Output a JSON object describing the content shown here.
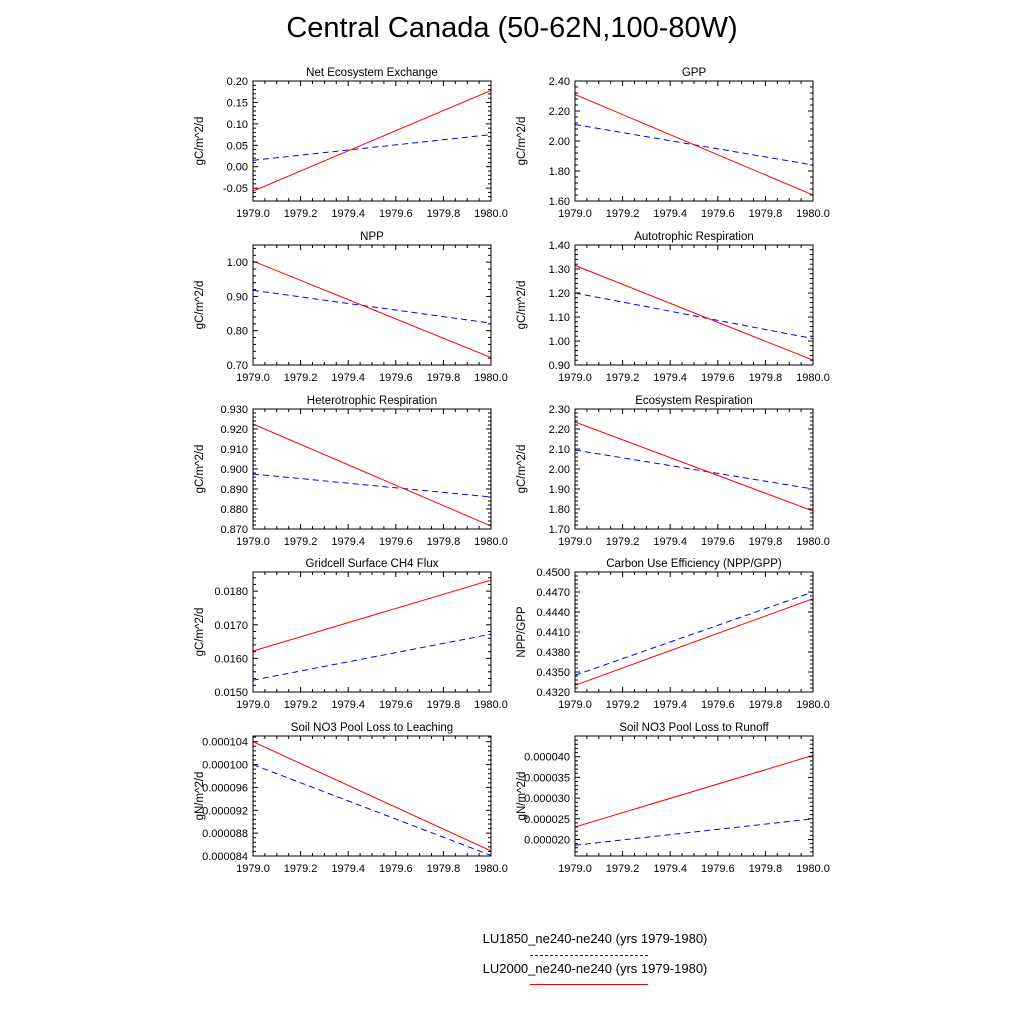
{
  "figure": {
    "title": "Central Canada (50-62N,100-80W)"
  },
  "colors": {
    "dashed_series": "#0000ff",
    "solid_series": "#ff0000",
    "axis": "#000000"
  },
  "legend": {
    "entries": [
      {
        "label": "LU1850_ne240-ne240 (yrs 1979-1980)",
        "style": "dashed",
        "color": "#0000ff"
      },
      {
        "label": "LU2000_ne240-ne240 (yrs 1979-1980)",
        "style": "solid",
        "color": "#ff0000"
      }
    ]
  },
  "chart_data": [
    {
      "type": "line",
      "title": "Net Ecosystem Exchange",
      "ylabel": "gC/m^2/d",
      "xlim": [
        1979.0,
        1980.0
      ],
      "ylim": [
        -0.08,
        0.2
      ],
      "xticks": [
        "1979.0",
        "1979.2",
        "1979.4",
        "1979.6",
        "1979.8",
        "1980.0"
      ],
      "yticks": [
        {
          "v": 0.2,
          "label": "0.20"
        },
        {
          "v": 0.15,
          "label": "0.15"
        },
        {
          "v": 0.1,
          "label": "0.10"
        },
        {
          "v": 0.05,
          "label": "0.05"
        },
        {
          "v": 0.0,
          "label": "0.00"
        },
        {
          "v": -0.05,
          "label": "-0.05"
        }
      ],
      "series": [
        {
          "name": "LU1850_ne240-ne240 (yrs 1979-1980)",
          "x": [
            1979.0,
            1980.0
          ],
          "y": [
            0.015,
            0.075
          ]
        },
        {
          "name": "LU2000_ne240-ne240 (yrs 1979-1980)",
          "x": [
            1979.0,
            1980.0
          ],
          "y": [
            -0.057,
            0.178
          ]
        }
      ]
    },
    {
      "type": "line",
      "title": "GPP",
      "ylabel": "gC/m^2/d",
      "xlim": [
        1979.0,
        1980.0
      ],
      "ylim": [
        1.6,
        2.4
      ],
      "xticks": [
        "1979.0",
        "1979.2",
        "1979.4",
        "1979.6",
        "1979.8",
        "1980.0"
      ],
      "yticks": [
        {
          "v": 2.4,
          "label": "2.40"
        },
        {
          "v": 2.2,
          "label": "2.20"
        },
        {
          "v": 2.0,
          "label": "2.00"
        },
        {
          "v": 1.8,
          "label": "1.80"
        },
        {
          "v": 1.6,
          "label": "1.60"
        }
      ],
      "series": [
        {
          "name": "LU1850_ne240-ne240 (yrs 1979-1980)",
          "x": [
            1979.0,
            1980.0
          ],
          "y": [
            2.11,
            1.84
          ]
        },
        {
          "name": "LU2000_ne240-ne240 (yrs 1979-1980)",
          "x": [
            1979.0,
            1980.0
          ],
          "y": [
            2.31,
            1.64
          ]
        }
      ]
    },
    {
      "type": "line",
      "title": "NPP",
      "ylabel": "gC/m^2/d",
      "xlim": [
        1979.0,
        1980.0
      ],
      "ylim": [
        0.7,
        1.05
      ],
      "xticks": [
        "1979.0",
        "1979.2",
        "1979.4",
        "1979.6",
        "1979.8",
        "1980.0"
      ],
      "yticks": [
        {
          "v": 1.0,
          "label": "1.00"
        },
        {
          "v": 0.9,
          "label": "0.90"
        },
        {
          "v": 0.8,
          "label": "0.80"
        },
        {
          "v": 0.7,
          "label": "0.70"
        }
      ],
      "series": [
        {
          "name": "LU1850_ne240-ne240 (yrs 1979-1980)",
          "x": [
            1979.0,
            1980.0
          ],
          "y": [
            0.918,
            0.822
          ]
        },
        {
          "name": "LU2000_ne240-ne240 (yrs 1979-1980)",
          "x": [
            1979.0,
            1980.0
          ],
          "y": [
            1.003,
            0.722
          ]
        }
      ]
    },
    {
      "type": "line",
      "title": "Autotrophic Respiration",
      "ylabel": "gC/m^2/d",
      "xlim": [
        1979.0,
        1980.0
      ],
      "ylim": [
        0.9,
        1.4
      ],
      "xticks": [
        "1979.0",
        "1979.2",
        "1979.4",
        "1979.6",
        "1979.8",
        "1980.0"
      ],
      "yticks": [
        {
          "v": 1.4,
          "label": "1.40"
        },
        {
          "v": 1.3,
          "label": "1.30"
        },
        {
          "v": 1.2,
          "label": "1.20"
        },
        {
          "v": 1.1,
          "label": "1.10"
        },
        {
          "v": 1.0,
          "label": "1.00"
        },
        {
          "v": 0.9,
          "label": "0.90"
        }
      ],
      "series": [
        {
          "name": "LU1850_ne240-ne240 (yrs 1979-1980)",
          "x": [
            1979.0,
            1980.0
          ],
          "y": [
            1.2,
            1.01
          ]
        },
        {
          "name": "LU2000_ne240-ne240 (yrs 1979-1980)",
          "x": [
            1979.0,
            1980.0
          ],
          "y": [
            1.315,
            0.92
          ]
        }
      ]
    },
    {
      "type": "line",
      "title": "Heterotrophic Respiration",
      "ylabel": "gC/m^2/d",
      "xlim": [
        1979.0,
        1980.0
      ],
      "ylim": [
        0.87,
        0.93
      ],
      "xticks": [
        "1979.0",
        "1979.2",
        "1979.4",
        "1979.6",
        "1979.8",
        "1980.0"
      ],
      "yticks": [
        {
          "v": 0.93,
          "label": "0.930"
        },
        {
          "v": 0.92,
          "label": "0.920"
        },
        {
          "v": 0.91,
          "label": "0.910"
        },
        {
          "v": 0.9,
          "label": "0.900"
        },
        {
          "v": 0.89,
          "label": "0.890"
        },
        {
          "v": 0.88,
          "label": "0.880"
        },
        {
          "v": 0.87,
          "label": "0.870"
        }
      ],
      "series": [
        {
          "name": "LU1850_ne240-ne240 (yrs 1979-1980)",
          "x": [
            1979.0,
            1980.0
          ],
          "y": [
            0.8975,
            0.886
          ]
        },
        {
          "name": "LU2000_ne240-ne240 (yrs 1979-1980)",
          "x": [
            1979.0,
            1980.0
          ],
          "y": [
            0.9225,
            0.8715
          ]
        }
      ]
    },
    {
      "type": "line",
      "title": "Ecosystem Respiration",
      "ylabel": "gC/m^2/d",
      "xlim": [
        1979.0,
        1980.0
      ],
      "ylim": [
        1.7,
        2.3
      ],
      "xticks": [
        "1979.0",
        "1979.2",
        "1979.4",
        "1979.6",
        "1979.8",
        "1980.0"
      ],
      "yticks": [
        {
          "v": 2.3,
          "label": "2.30"
        },
        {
          "v": 2.2,
          "label": "2.20"
        },
        {
          "v": 2.1,
          "label": "2.10"
        },
        {
          "v": 2.0,
          "label": "2.00"
        },
        {
          "v": 1.9,
          "label": "1.90"
        },
        {
          "v": 1.8,
          "label": "1.80"
        },
        {
          "v": 1.7,
          "label": "1.70"
        }
      ],
      "series": [
        {
          "name": "LU1850_ne240-ne240 (yrs 1979-1980)",
          "x": [
            1979.0,
            1980.0
          ],
          "y": [
            2.095,
            1.9
          ]
        },
        {
          "name": "LU2000_ne240-ne240 (yrs 1979-1980)",
          "x": [
            1979.0,
            1980.0
          ],
          "y": [
            2.235,
            1.79
          ]
        }
      ]
    },
    {
      "type": "line",
      "title": "Gridcell Surface CH4 Flux",
      "ylabel": "gC/m^2/d",
      "xlim": [
        1979.0,
        1980.0
      ],
      "ylim": [
        0.015,
        0.01857
      ],
      "xticks": [
        "1979.0",
        "1979.2",
        "1979.4",
        "1979.6",
        "1979.8",
        "1980.0"
      ],
      "yticks": [
        {
          "v": 0.018,
          "label": "0.0180"
        },
        {
          "v": 0.017,
          "label": "0.0170"
        },
        {
          "v": 0.016,
          "label": "0.0160"
        },
        {
          "v": 0.015,
          "label": "0.0150"
        }
      ],
      "series": [
        {
          "name": "LU1850_ne240-ne240 (yrs 1979-1980)",
          "x": [
            1979.0,
            1980.0
          ],
          "y": [
            0.01535,
            0.01672
          ]
        },
        {
          "name": "LU2000_ne240-ne240 (yrs 1979-1980)",
          "x": [
            1979.0,
            1980.0
          ],
          "y": [
            0.01622,
            0.01833
          ]
        }
      ]
    },
    {
      "type": "line",
      "title": "Carbon Use Efficiency (NPP/GPP)",
      "ylabel": "NPP/GPP",
      "xlim": [
        1979.0,
        1980.0
      ],
      "ylim": [
        0.432,
        0.45
      ],
      "xticks": [
        "1979.0",
        "1979.2",
        "1979.4",
        "1979.6",
        "1979.8",
        "1980.0"
      ],
      "yticks": [
        {
          "v": 0.45,
          "label": "0.4500"
        },
        {
          "v": 0.447,
          "label": "0.4470"
        },
        {
          "v": 0.444,
          "label": "0.4440"
        },
        {
          "v": 0.441,
          "label": "0.4410"
        },
        {
          "v": 0.438,
          "label": "0.4380"
        },
        {
          "v": 0.435,
          "label": "0.4350"
        },
        {
          "v": 0.432,
          "label": "0.4320"
        }
      ],
      "series": [
        {
          "name": "LU1850_ne240-ne240 (yrs 1979-1980)",
          "x": [
            1979.0,
            1980.0
          ],
          "y": [
            0.4345,
            0.447
          ]
        },
        {
          "name": "LU2000_ne240-ne240 (yrs 1979-1980)",
          "x": [
            1979.0,
            1980.0
          ],
          "y": [
            0.433,
            0.446
          ]
        }
      ]
    },
    {
      "type": "line",
      "title": "Soil NO3 Pool Loss to Leaching",
      "ylabel": "gN/m^2/d",
      "xlim": [
        1979.0,
        1980.0
      ],
      "ylim": [
        8.4e-05,
        0.000105
      ],
      "xticks": [
        "1979.0",
        "1979.2",
        "1979.4",
        "1979.6",
        "1979.8",
        "1980.0"
      ],
      "yticks": [
        {
          "v": 0.000104,
          "label": "0.000104"
        },
        {
          "v": 0.0001,
          "label": "0.000100"
        },
        {
          "v": 9.6e-05,
          "label": "0.000096"
        },
        {
          "v": 9.2e-05,
          "label": "0.000092"
        },
        {
          "v": 8.8e-05,
          "label": "0.000088"
        },
        {
          "v": 8.4e-05,
          "label": "0.000084"
        }
      ],
      "series": [
        {
          "name": "LU1850_ne240-ne240 (yrs 1979-1980)",
          "x": [
            1979.0,
            1980.0
          ],
          "y": [
            0.0001,
            8.41e-05
          ]
        },
        {
          "name": "LU2000_ne240-ne240 (yrs 1979-1980)",
          "x": [
            1979.0,
            1980.0
          ],
          "y": [
            0.000104,
            8.49e-05
          ]
        }
      ]
    },
    {
      "type": "line",
      "title": "Soil NO3 Pool Loss to Runoff",
      "ylabel": "gN/m^2/d",
      "xlim": [
        1979.0,
        1980.0
      ],
      "ylim": [
        1.6e-05,
        4.5e-05
      ],
      "xticks": [
        "1979.0",
        "1979.2",
        "1979.4",
        "1979.6",
        "1979.8",
        "1980.0"
      ],
      "yticks": [
        {
          "v": 4e-05,
          "label": "0.000040"
        },
        {
          "v": 3.5e-05,
          "label": "0.000035"
        },
        {
          "v": 3e-05,
          "label": "0.000030"
        },
        {
          "v": 2.5e-05,
          "label": "0.000025"
        },
        {
          "v": 2e-05,
          "label": "0.000020"
        }
      ],
      "series": [
        {
          "name": "LU1850_ne240-ne240 (yrs 1979-1980)",
          "x": [
            1979.0,
            1980.0
          ],
          "y": [
            1.86e-05,
            2.5e-05
          ]
        },
        {
          "name": "LU2000_ne240-ne240 (yrs 1979-1980)",
          "x": [
            1979.0,
            1980.0
          ],
          "y": [
            2.3e-05,
            4.03e-05
          ]
        }
      ]
    }
  ]
}
